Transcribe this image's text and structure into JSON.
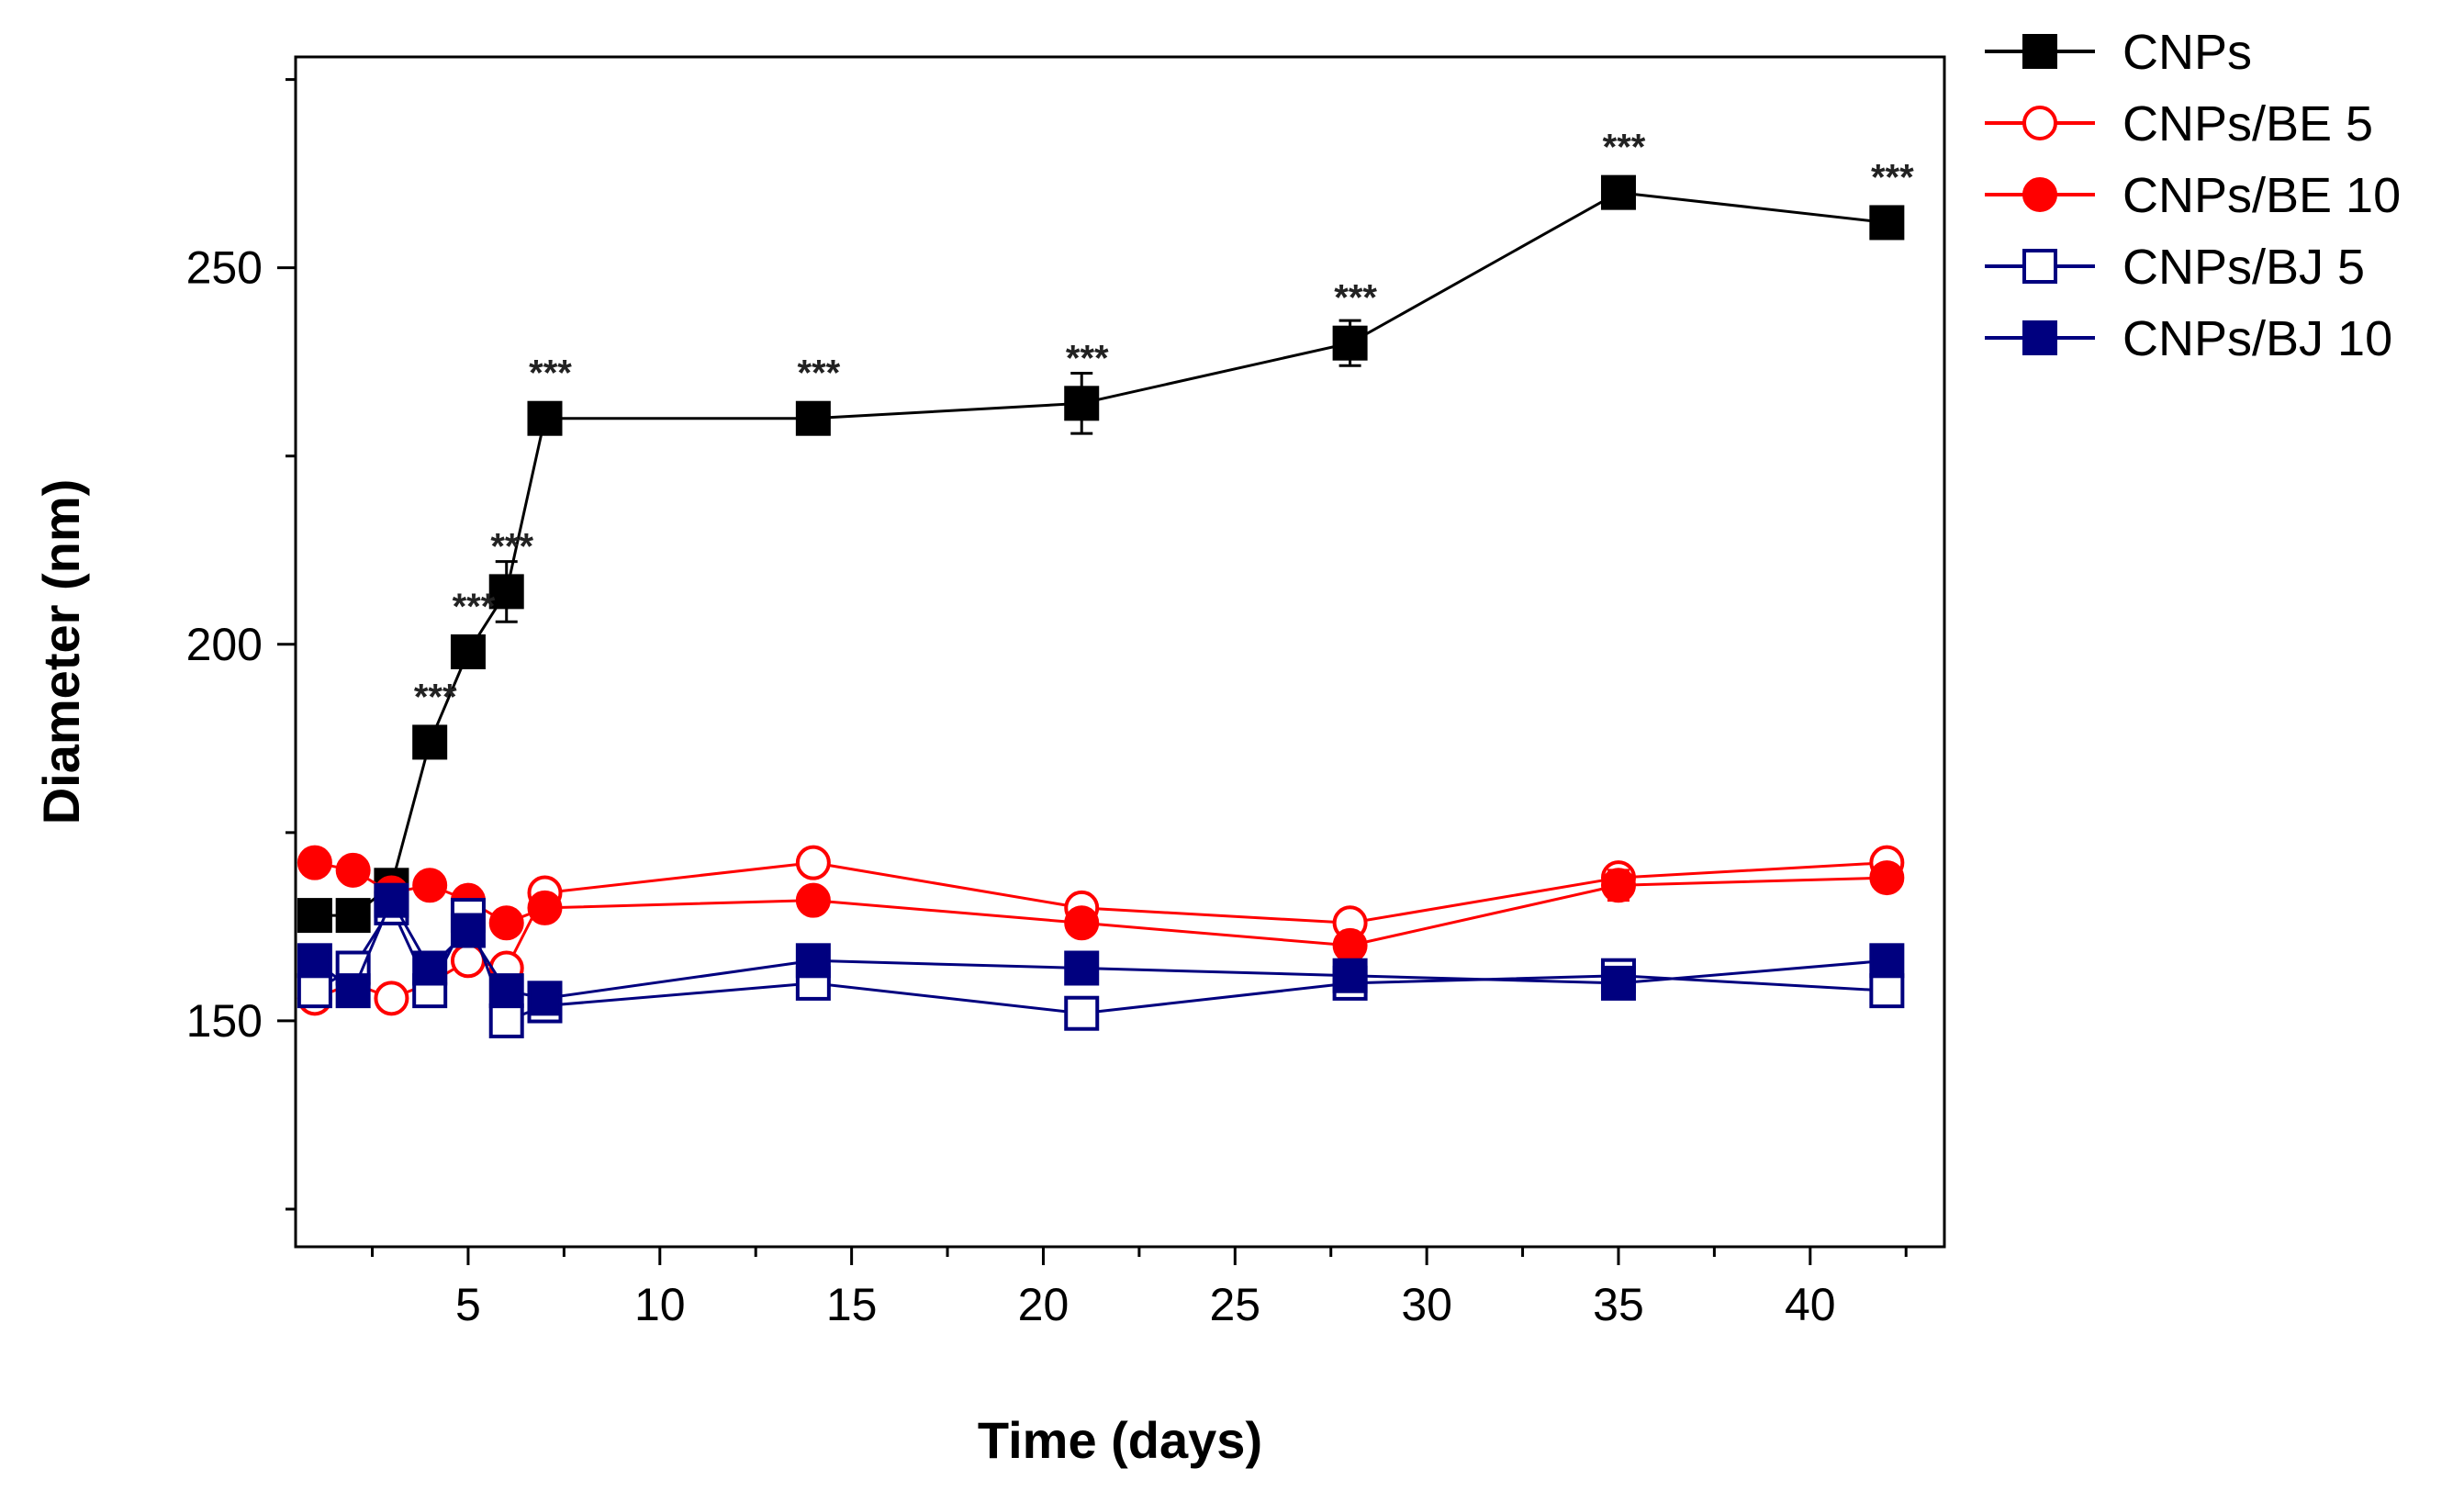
{
  "chart_data": {
    "type": "line",
    "title": "",
    "xlabel": "Time (days)",
    "ylabel": "Diameter (nm)",
    "xlim": [
      0.5,
      43.5
    ],
    "ylim": [
      120,
      278
    ],
    "xticks": [
      5,
      10,
      15,
      20,
      25,
      30,
      35,
      40
    ],
    "xtick_labels": [
      "5",
      "10",
      "15",
      "20",
      "25",
      "30",
      "35",
      "40"
    ],
    "yticks": [
      150,
      200,
      250
    ],
    "ytick_labels": [
      "150",
      "200",
      "250"
    ],
    "legend_position": "outside-top-right",
    "series": [
      {
        "name": "CNPs",
        "color": "#000000",
        "marker": "square",
        "filled": true,
        "x": [
          1,
          2,
          3,
          4,
          5,
          6,
          7,
          14,
          21,
          28,
          35,
          42
        ],
        "values": [
          164,
          164,
          168,
          187,
          199,
          207,
          230,
          230,
          232,
          240,
          260,
          256
        ],
        "errors": [
          2,
          1,
          1,
          2,
          2,
          4,
          1,
          1,
          4,
          3,
          1,
          1
        ]
      },
      {
        "name": "CNPs/BE 5",
        "color": "#ff0000",
        "marker": "circle",
        "filled": false,
        "x": [
          1,
          2,
          3,
          4,
          5,
          6,
          7,
          14,
          21,
          28,
          35,
          42
        ],
        "values": [
          153,
          155,
          153,
          155,
          158,
          157,
          167,
          171,
          165,
          163,
          169,
          171
        ],
        "errors": [
          1,
          1,
          1,
          1,
          1,
          1,
          1,
          1,
          1,
          1,
          1,
          1
        ]
      },
      {
        "name": "CNPs/BE 10",
        "color": "#ff0000",
        "marker": "circle",
        "filled": true,
        "x": [
          1,
          2,
          3,
          4,
          5,
          6,
          7,
          14,
          21,
          28,
          35,
          42
        ],
        "values": [
          171,
          170,
          167,
          168,
          166,
          163,
          165,
          166,
          163,
          160,
          168,
          169
        ],
        "errors": [
          1,
          1,
          1,
          1,
          1,
          1,
          1,
          1,
          1,
          1,
          2,
          1
        ]
      },
      {
        "name": "CNPs/BJ 5",
        "color": "#00007f",
        "marker": "square",
        "filled": false,
        "x": [
          1,
          2,
          3,
          4,
          5,
          6,
          7,
          14,
          21,
          28,
          35,
          42
        ],
        "values": [
          154,
          157,
          165,
          154,
          164,
          150,
          152,
          155,
          151,
          155,
          156,
          154
        ],
        "errors": [
          1,
          1,
          1,
          1,
          1,
          1,
          1,
          1,
          1,
          1,
          1,
          1
        ]
      },
      {
        "name": "CNPs/BJ 10",
        "color": "#00007f",
        "marker": "square",
        "filled": true,
        "x": [
          1,
          2,
          3,
          4,
          5,
          6,
          7,
          14,
          21,
          28,
          35,
          42
        ],
        "values": [
          158,
          154,
          166,
          157,
          162,
          154,
          153,
          158,
          157,
          156,
          155,
          158
        ],
        "errors": [
          1,
          1,
          1,
          1,
          1,
          1,
          1,
          1,
          1,
          1,
          1,
          1
        ]
      }
    ],
    "annotations": [
      {
        "x": 4,
        "y": 187,
        "text": "***"
      },
      {
        "x": 5,
        "y": 199,
        "text": "***"
      },
      {
        "x": 6,
        "y": 207,
        "text": "***"
      },
      {
        "x": 7,
        "y": 230,
        "text": "***"
      },
      {
        "x": 14,
        "y": 230,
        "text": "***"
      },
      {
        "x": 21,
        "y": 232,
        "text": "***"
      },
      {
        "x": 28,
        "y": 240,
        "text": "***"
      },
      {
        "x": 35,
        "y": 260,
        "text": "***"
      },
      {
        "x": 42,
        "y": 256,
        "text": "***"
      }
    ]
  }
}
